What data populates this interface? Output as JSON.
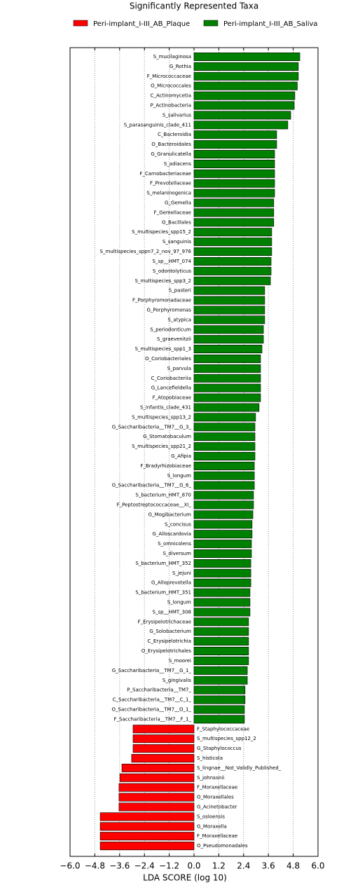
{
  "chart_data": {
    "type": "lda_bar",
    "title": "Significantly Represented Taxa",
    "x_label": "LDA SCORE (log 10)",
    "xlim": [
      -6.0,
      6.0
    ],
    "xticks": [
      {
        "value": -6.0,
        "label": "−6.0"
      },
      {
        "value": -4.8,
        "label": "−4.8"
      },
      {
        "value": -3.6,
        "label": "−3.6"
      },
      {
        "value": -2.4,
        "label": "−2.4"
      },
      {
        "value": -1.2,
        "label": "−1.2"
      },
      {
        "value": 0,
        "label": "0.0"
      },
      1.2,
      2.4,
      3.6,
      4.8,
      {
        "value": 6.0,
        "label": "6.0"
      }
    ],
    "grid": true,
    "series": [
      {
        "name": "Peri-implant_I-III_AB_Plaque",
        "color": "#ff0000",
        "categories": [
          "F_Staphylococcaceae",
          "S_multispecies_spp12_2",
          "G_Staphylococcus",
          "S_histicola",
          "S_lingnae__Not_Validly_Published_",
          "S_johnsonii",
          "F_Moraxellaceae",
          "O_Moraxellales",
          "G_Acinetobacter",
          "S_osloensis",
          "G_Moraxella",
          "F_Moraxellaceae",
          "O_Pseudomonadales"
        ],
        "values": [
          -2.95,
          -2.95,
          -2.95,
          -3.02,
          -3.49,
          -3.59,
          -3.63,
          -3.63,
          -3.63,
          -4.54,
          -4.54,
          -4.54,
          -4.54
        ]
      },
      {
        "name": "Peri-implant_I-III_AB_Saliva",
        "color": "#008000",
        "categories": [
          "S_mucilaginosa",
          "G_Rothia",
          "F_Micrococcaceae",
          "O_Micrococcales",
          "C_Actinomycetia",
          "P_Actinobacteria",
          "S_salivarius",
          "S_parasanguinis_clade_411",
          "C_Bacteroidia",
          "O_Bacteroidales",
          "G_Granulicatella",
          "S_adiacens",
          "F_Carnobacteriaceae",
          "F_Prevotellaceae",
          "S_melaninogenica",
          "G_Gemella",
          "F_Gemellaceae",
          "O_Bacillales",
          "S_multispecies_spp15_2",
          "S_sanguinis",
          "S_multispecies_sppn7_2_nov_97_976",
          "S_sp__HMT_074",
          "S_odontolyticus",
          "S_multispecies_spp3_2",
          "S_pasteri",
          "F_Porphyromonadaceae",
          "G_Porphyromonas",
          "S_atypica",
          "S_periodonticum",
          "S_graevenitzii",
          "S_multispecies_spp1_3",
          "O_Coriobacteriales",
          "S_parvula",
          "C_Coriobacteriia",
          "G_Lancefieldella",
          "F_Atopobiaceae",
          "S_infantis_clade_431",
          "S_multispecies_spp13_2",
          "G_Saccharibacteria__TM7__G_3_",
          "G_Stomatobaculum",
          "S_multispecies_spp21_2",
          "G_Afipia",
          "F_Bradyrhizobiaceae",
          "S_longum",
          "G_Saccharibacteria__TM7__G_6_",
          "S_bacterium_HMT_870",
          "F_Peptostreptococcaceae__XI_",
          "G_Mogibacterium",
          "S_concisus",
          "G_Alloscardovia",
          "S_omnicolens",
          "S_diversum",
          "S_bacterium_HMT_352",
          "S_jejuni",
          "G_Alloprevotella",
          "S_bacterium_HMT_351",
          "S_longum",
          "S_sp__HMT_308",
          "F_Erysipelotrichaceae",
          "G_Solobacterium",
          "C_Erysipelotrichia",
          "O_Erysipelotrichales",
          "S_moorei",
          "G_Saccharibacteria__TM7__G_1_",
          "S_gingivalis",
          "P_Saccharibacteria__TM7_",
          "C_Saccharibacteria__TM7__C_1_",
          "O_Saccharibacteria__TM7__O_1_",
          "F_Saccharibacteria__TM7__F_1_"
        ],
        "values": [
          5.12,
          5.05,
          5.05,
          5.0,
          4.88,
          4.85,
          4.68,
          4.54,
          4.0,
          4.0,
          3.9,
          3.9,
          3.9,
          3.9,
          3.9,
          3.86,
          3.86,
          3.86,
          3.76,
          3.76,
          3.76,
          3.73,
          3.73,
          3.7,
          3.42,
          3.42,
          3.42,
          3.42,
          3.36,
          3.36,
          3.29,
          3.22,
          3.22,
          3.22,
          3.22,
          3.22,
          3.15,
          2.98,
          2.95,
          2.95,
          2.95,
          2.95,
          2.92,
          2.92,
          2.92,
          2.88,
          2.88,
          2.85,
          2.81,
          2.81,
          2.78,
          2.78,
          2.75,
          2.75,
          2.75,
          2.71,
          2.71,
          2.71,
          2.64,
          2.64,
          2.64,
          2.64,
          2.64,
          2.58,
          2.58,
          2.47,
          2.47,
          2.44,
          2.44
        ]
      }
    ]
  }
}
